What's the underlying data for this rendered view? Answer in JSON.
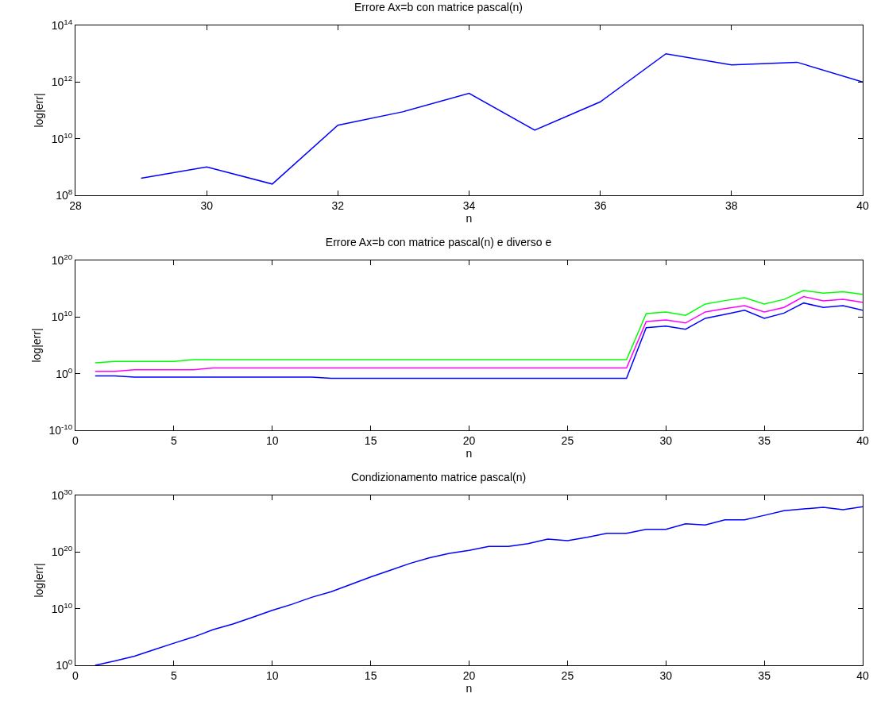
{
  "chart_data": [
    {
      "type": "line",
      "title": "Errore Ax=b con matrice pascal(n)",
      "xlabel": "n",
      "ylabel": "log|err|",
      "log": "y",
      "grid": false,
      "marker": "none",
      "line_style": "solid",
      "x": [
        29,
        30,
        31,
        32,
        33,
        34,
        35,
        36,
        37,
        38,
        39,
        40
      ],
      "series": [
        {
          "color": "#0000ff",
          "values": [
            400000000.0,
            1000000000.0,
            250000000.0,
            30000000000.0,
            90000000000.0,
            400000000000.0,
            20000000000.0,
            200000000000.0,
            10000000000000.0,
            4000000000000.0,
            5000000000000.0,
            1000000000000.0
          ]
        }
      ],
      "xlim": [
        28,
        40
      ],
      "xticks": [
        28,
        30,
        32,
        34,
        36,
        38,
        40
      ],
      "ylim": [
        100000000.0,
        100000000000000.0
      ],
      "yticks": [
        {
          "value": 100000000.0,
          "label": "10$^{8}$"
        },
        {
          "value": 10000000000.0,
          "label": "10$^{10}$"
        },
        {
          "value": 1000000000000.0,
          "label": "10$^{12}$"
        },
        {
          "value": 100000000000000.0,
          "label": "10$^{14}$"
        }
      ]
    },
    {
      "type": "line",
      "title": "Errore Ax=b con matrice pascal(n) e diverso e",
      "xlabel": "n",
      "ylabel": "log|err|",
      "log": "y",
      "grid": false,
      "marker": "none",
      "line_style": "solid",
      "x": [
        1,
        2,
        3,
        4,
        5,
        6,
        7,
        8,
        9,
        10,
        11,
        12,
        13,
        14,
        15,
        16,
        17,
        18,
        19,
        20,
        21,
        22,
        23,
        24,
        25,
        26,
        27,
        28,
        29,
        30,
        31,
        32,
        33,
        34,
        35,
        36,
        37,
        38,
        39,
        40
      ],
      "series": [
        {
          "color": "#00ff00",
          "values": [
            80,
            150,
            150,
            150,
            150,
            300,
            300,
            300,
            300,
            300,
            300,
            300,
            300,
            300,
            300,
            300,
            300,
            300,
            300,
            300,
            300,
            300,
            300,
            300,
            300,
            300,
            300,
            300,
            40000000000.0,
            80000000000.0,
            20000000000.0,
            2000000000000.0,
            8000000000000.0,
            25000000000000.0,
            2000000000000.0,
            13000000000000.0,
            500000000000000.0,
            160000000000000.0,
            300000000000000.0,
            100000000000000.0
          ]
        },
        {
          "color": "#ff00ff",
          "values": [
            2.5,
            2.5,
            5,
            5,
            5,
            5,
            10,
            10,
            10,
            10,
            10,
            10,
            10,
            10,
            10,
            10,
            10,
            10,
            10,
            10,
            10,
            10,
            10,
            10,
            10,
            10,
            10,
            10,
            1600000000.0,
            3000000000.0,
            900000000.0,
            80000000000.0,
            300000000000.0,
            1000000000000.0,
            80000000000.0,
            500000000000.0,
            40000000000000.0,
            7000000000000.0,
            13000000000000.0,
            4000000000000.0
          ]
        },
        {
          "color": "#0000ff",
          "values": [
            0.4,
            0.4,
            0.25,
            0.25,
            0.25,
            0.25,
            0.25,
            0.25,
            0.25,
            0.25,
            0.25,
            0.25,
            0.15,
            0.15,
            0.15,
            0.15,
            0.15,
            0.15,
            0.15,
            0.15,
            0.15,
            0.15,
            0.15,
            0.15,
            0.15,
            0.15,
            0.15,
            0.15,
            130000000.0,
            250000000.0,
            70000000.0,
            6000000000.0,
            30000000000.0,
            160000000000.0,
            6000000000.0,
            50000000000.0,
            3000000000000.0,
            500000000000.0,
            1000000000000.0,
            160000000000.0
          ]
        }
      ],
      "xlim": [
        0,
        40
      ],
      "xticks": [
        0,
        5,
        10,
        15,
        20,
        25,
        30,
        35,
        40
      ],
      "ylim": [
        1e-10,
        1e+20
      ],
      "yticks": [
        {
          "value": 1e-10,
          "label": "10$^{-10}$"
        },
        {
          "value": 1,
          "label": "10$^{0}$"
        },
        {
          "value": 10000000000.0,
          "label": "10$^{10}$"
        },
        {
          "value": 1e+20,
          "label": "10$^{20}$"
        }
      ]
    },
    {
      "type": "line",
      "title": "Condizionamento matrice pascal(n)",
      "xlabel": "n",
      "ylabel": "log|err|",
      "log": "y",
      "grid": false,
      "marker": "none",
      "line_style": "solid",
      "x": [
        1,
        2,
        3,
        4,
        5,
        6,
        7,
        8,
        9,
        10,
        11,
        12,
        13,
        14,
        15,
        16,
        17,
        18,
        19,
        20,
        21,
        22,
        23,
        24,
        25,
        26,
        27,
        28,
        29,
        30,
        31,
        32,
        33,
        34,
        35,
        36,
        37,
        38,
        39,
        40
      ],
      "series": [
        {
          "color": "#0000ff",
          "values": [
            1,
            6,
            40,
            600,
            8000,
            100000.0,
            2000000.0,
            20000000.0,
            300000000.0,
            5000000000.0,
            60000000000.0,
            1000000000000.0,
            10000000000000.0,
            200000000000000.0,
            4000000000000000.0,
            6e+16,
            1e+18,
            1e+19,
            6e+19,
            2e+20,
            1e+21,
            1e+21,
            3e+21,
            2e+22,
            1e+22,
            4e+22,
            2e+23,
            2e+23,
            1e+24,
            1e+24,
            1e+25,
            6e+24,
            5e+25,
            5e+25,
            3e+26,
            2e+27,
            4e+27,
            8e+27,
            3e+27,
            1e+28
          ]
        }
      ],
      "xlim": [
        0,
        40
      ],
      "xticks": [
        0,
        5,
        10,
        15,
        20,
        25,
        30,
        35,
        40
      ],
      "ylim": [
        1,
        1e+30
      ],
      "yticks": [
        {
          "value": 1,
          "label": "10$^{0}$"
        },
        {
          "value": 10000000000.0,
          "label": "10$^{10}$"
        },
        {
          "value": 1e+20,
          "label": "10$^{20}$"
        },
        {
          "value": 1e+30,
          "label": "10$^{30}$"
        }
      ]
    }
  ]
}
